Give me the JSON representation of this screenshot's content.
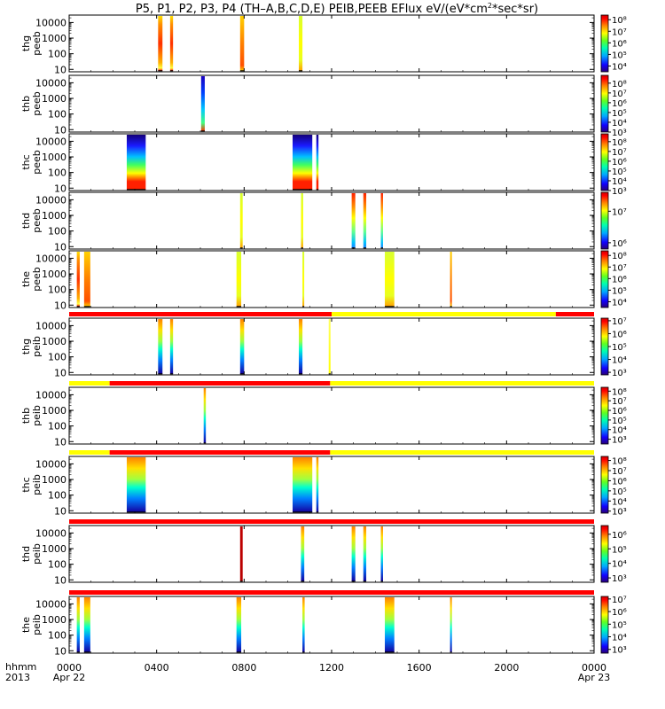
{
  "chart_data": {
    "type": "heatmap",
    "title_parts": [
      "P5, P1, P2, P3, P4 (TH–A,B,C,D,E) PEIB,PEEB EFlux eV/(eV*cm",
      "2",
      "*sec*sr)"
    ],
    "time_axis": {
      "label_top": "hhmm",
      "label_bottom": "2013",
      "ticks": [
        {
          "t": 0,
          "label": "0000",
          "sub": "Apr 22"
        },
        {
          "t": 240,
          "label": "0400",
          "sub": ""
        },
        {
          "t": 480,
          "label": "0800",
          "sub": ""
        },
        {
          "t": 720,
          "label": "1200",
          "sub": ""
        },
        {
          "t": 960,
          "label": "1600",
          "sub": ""
        },
        {
          "t": 1200,
          "label": "2000",
          "sub": ""
        },
        {
          "t": 1440,
          "label": "0000",
          "sub": "Apr 23"
        }
      ],
      "range_minutes": [
        0,
        1440
      ]
    },
    "energy_ticks": [
      "10",
      "100",
      "1000",
      "10000"
    ],
    "energy_range_ev": [
      7,
      30000
    ],
    "colors": {
      "red": "#ff0000",
      "yellow": "#ffff00",
      "black": "#000000"
    },
    "panels": [
      {
        "label_top": "thg",
        "label_bottom": "peeb",
        "colorbar": {
          "min_exp": 3.5,
          "max_exp": 8.4,
          "labels": [
            "10⁴",
            "10⁵",
            "10⁶",
            "10⁷",
            "10⁸"
          ],
          "label_exps": [
            4,
            5,
            6,
            7,
            8
          ]
        },
        "bands": [
          {
            "t": [
              244,
              256
            ],
            "style": "hot_edge"
          },
          {
            "t": [
              277,
              285
            ],
            "style": "hot_edge"
          },
          {
            "t": [
              469,
              480
            ],
            "style": "orange_low"
          },
          {
            "t": [
              630,
              640
            ],
            "style": "yellow_green"
          }
        ]
      },
      {
        "label_top": "thb",
        "label_bottom": "peeb",
        "colorbar": {
          "min_exp": 3.0,
          "max_exp": 8.8,
          "labels": [
            "10³",
            "10⁴",
            "10⁵",
            "10⁶",
            "10⁷",
            "10⁸"
          ],
          "label_exps": [
            3,
            4,
            5,
            6,
            7,
            8
          ]
        },
        "bands": [
          {
            "t": [
              362,
              372
            ],
            "style": "blue_green"
          }
        ]
      },
      {
        "label_top": "thc",
        "label_bottom": "peeb",
        "colorbar": {
          "min_exp": 3.0,
          "max_exp": 8.8,
          "labels": [
            "10³",
            "10⁴",
            "10⁵",
            "10⁶",
            "10⁷",
            "10⁸"
          ],
          "label_exps": [
            3,
            4,
            5,
            6,
            7,
            8
          ]
        },
        "bands": [
          {
            "t": [
              158,
              210
            ],
            "style": "full_cold"
          },
          {
            "t": [
              613,
              667
            ],
            "style": "full_cold"
          },
          {
            "t": [
              678,
              684
            ],
            "style": "full_cold"
          }
        ]
      },
      {
        "label_top": "thd",
        "label_bottom": "peeb",
        "colorbar": {
          "min_exp": 5.8,
          "max_exp": 7.6,
          "labels": [
            "10⁶",
            "10⁷"
          ],
          "label_exps": [
            6,
            7
          ]
        },
        "bands": [
          {
            "t": [
              469,
              476
            ],
            "style": "yellow_green"
          },
          {
            "t": [
              636,
              642
            ],
            "style": "yellow_green"
          },
          {
            "t": [
              775,
              785
            ],
            "style": "hot_top"
          },
          {
            "t": [
              807,
              815
            ],
            "style": "hot_top"
          },
          {
            "t": [
              855,
              861
            ],
            "style": "hot_top"
          }
        ]
      },
      {
        "label_top": "the",
        "label_bottom": "peeb",
        "colorbar": {
          "min_exp": 3.5,
          "max_exp": 8.4,
          "labels": [
            "10⁴",
            "10⁵",
            "10⁶",
            "10⁷",
            "10⁸"
          ],
          "label_exps": [
            4,
            5,
            6,
            7,
            8
          ]
        },
        "bands": [
          {
            "t": [
              21,
              29
            ],
            "style": "hot_edge"
          },
          {
            "t": [
              41,
              58
            ],
            "style": "orange_low"
          },
          {
            "t": [
              459,
              472
            ],
            "style": "yellow_green"
          },
          {
            "t": [
              640,
              644
            ],
            "style": "yellow_green"
          },
          {
            "t": [
              866,
              892
            ],
            "style": "yellow_green"
          },
          {
            "t": [
              1045,
              1050
            ],
            "style": "orange_low"
          }
        ]
      },
      {
        "label_top": "thg",
        "label_bottom": "peib",
        "colorbar": {
          "min_exp": 2.8,
          "max_exp": 7.2,
          "labels": [
            "10³",
            "10⁴",
            "10⁵",
            "10⁶",
            "10⁷"
          ],
          "label_exps": [
            3,
            4,
            5,
            6,
            7
          ]
        },
        "flag": [
          {
            "t": [
              0,
              720
            ],
            "c": "red"
          },
          {
            "t": [
              720,
              1335
            ],
            "c": "yellow"
          },
          {
            "t": [
              1335,
              1440
            ],
            "c": "red"
          }
        ],
        "bands": [
          {
            "t": [
              244,
              256
            ],
            "style": "ion"
          },
          {
            "t": [
              277,
              285
            ],
            "style": "ion"
          },
          {
            "t": [
              469,
              480
            ],
            "style": "ion"
          },
          {
            "t": [
              630,
              640
            ],
            "style": "ion"
          },
          {
            "t": [
              712,
              717
            ],
            "style": "ion_thin"
          }
        ]
      },
      {
        "label_top": "thb",
        "label_bottom": "peib",
        "colorbar": {
          "min_exp": 2.5,
          "max_exp": 8.4,
          "labels": [
            "10³",
            "10⁴",
            "10⁵",
            "10⁶",
            "10⁷",
            "10⁸"
          ],
          "label_exps": [
            3,
            4,
            5,
            6,
            7,
            8
          ]
        },
        "flag": [
          {
            "t": [
              0,
              111
            ],
            "c": "yellow"
          },
          {
            "t": [
              111,
              716
            ],
            "c": "red"
          },
          {
            "t": [
              716,
              1440
            ],
            "c": "yellow"
          }
        ],
        "bands": [
          {
            "t": [
              369,
              375
            ],
            "style": "ion"
          }
        ]
      },
      {
        "label_top": "thc",
        "label_bottom": "peib",
        "colorbar": {
          "min_exp": 2.8,
          "max_exp": 8.4,
          "labels": [
            "10³",
            "10⁴",
            "10⁵",
            "10⁶",
            "10⁷",
            "10⁸"
          ],
          "label_exps": [
            3,
            4,
            5,
            6,
            7,
            8
          ]
        },
        "flag": [
          {
            "t": [
              0,
              111
            ],
            "c": "yellow"
          },
          {
            "t": [
              111,
              716
            ],
            "c": "red"
          },
          {
            "t": [
              716,
              1440
            ],
            "c": "yellow"
          }
        ],
        "bands": [
          {
            "t": [
              158,
              210
            ],
            "style": "ion"
          },
          {
            "t": [
              613,
              667
            ],
            "style": "ion"
          },
          {
            "t": [
              678,
              684
            ],
            "style": "ion"
          }
        ]
      },
      {
        "label_top": "thd",
        "label_bottom": "peib",
        "colorbar": {
          "min_exp": 2.7,
          "max_exp": 6.6,
          "labels": [
            "10³",
            "10⁴",
            "10⁵",
            "10⁶"
          ],
          "label_exps": [
            3,
            4,
            5,
            6
          ]
        },
        "flag": [
          {
            "t": [
              0,
              1440
            ],
            "c": "red"
          }
        ],
        "bands": [
          {
            "t": [
              469,
              476
            ],
            "style": "dark_red"
          },
          {
            "t": [
              636,
              645
            ],
            "style": "ion"
          },
          {
            "t": [
              775,
              785
            ],
            "style": "ion"
          },
          {
            "t": [
              807,
              815
            ],
            "style": "ion"
          },
          {
            "t": [
              855,
              861
            ],
            "style": "ion"
          }
        ]
      },
      {
        "label_top": "the",
        "label_bottom": "peib",
        "colorbar": {
          "min_exp": 2.7,
          "max_exp": 7.2,
          "labels": [
            "10³",
            "10⁴",
            "10⁵",
            "10⁶",
            "10⁷"
          ],
          "label_exps": [
            3,
            4,
            5,
            6,
            7
          ]
        },
        "flag": [
          {
            "t": [
              0,
              1440
            ],
            "c": "red"
          }
        ],
        "bands": [
          {
            "t": [
              21,
              29
            ],
            "style": "ion"
          },
          {
            "t": [
              41,
              58
            ],
            "style": "ion"
          },
          {
            "t": [
              459,
              472
            ],
            "style": "ion"
          },
          {
            "t": [
              640,
              646
            ],
            "style": "ion"
          },
          {
            "t": [
              866,
              892
            ],
            "style": "ion"
          },
          {
            "t": [
              1045,
              1050
            ],
            "style": "ion"
          }
        ]
      }
    ]
  }
}
